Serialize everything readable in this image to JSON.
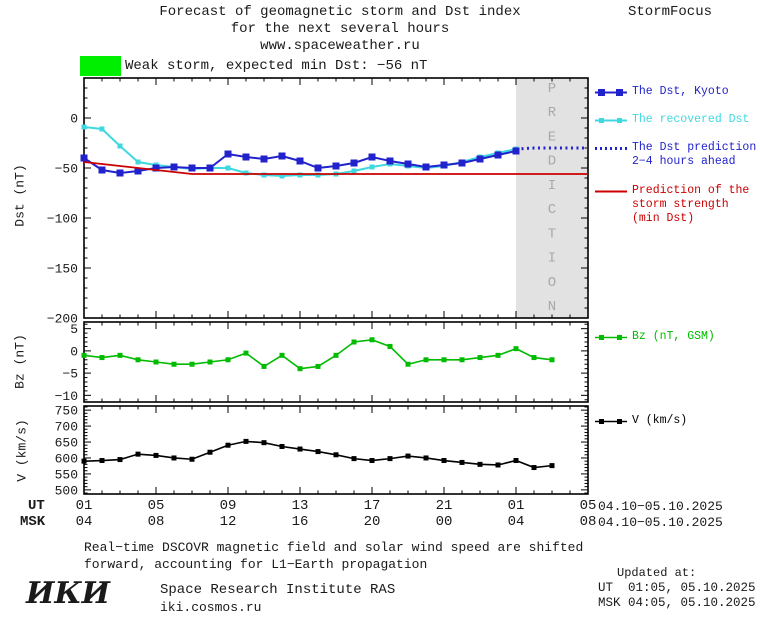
{
  "header": {
    "title_line1": "Forecast of geomagnetic storm and Dst index",
    "title_line2": "for the next several hours",
    "title_line3": "www.spaceweather.ru",
    "brand": "StormFocus"
  },
  "storm_banner": {
    "label": "Weak storm, expected min Dst: −56 nT",
    "color": "#00ee00"
  },
  "legend": {
    "dst_kyoto": {
      "label": "The Dst, Kyoto",
      "color": "#2222cc"
    },
    "recovered": {
      "label": "The recovered Dst",
      "color": "#3fd8e0"
    },
    "prediction": {
      "label_line1": "The Dst prediction",
      "label_line2": "2−4 hours ahead",
      "color": "#2222cc"
    },
    "storm_strength": {
      "label_line1": "Prediction of the",
      "label_line2": "storm strength",
      "label_line3": "(min Dst)",
      "color": "#cc0000"
    },
    "bz": {
      "label": "Bz (nT, GSM)",
      "color": "#00bb00"
    },
    "v": {
      "label": "V (km/s)",
      "color": "#000000"
    }
  },
  "chart_data": [
    {
      "type": "line",
      "title": "Dst index and forecast",
      "ylabel": "Dst (nT)",
      "xlabel": "UT hours, 04.10−05.10.2025",
      "xlim": [
        1,
        29
      ],
      "ylim": [
        -200,
        40
      ],
      "y_minor": 10,
      "yticks": [
        0,
        -50,
        -100,
        -150,
        -200
      ],
      "xticks": [
        1,
        5,
        9,
        13,
        17,
        21,
        25,
        29
      ],
      "prediction_band": {
        "x_start": 25,
        "x_end": 29,
        "label": "PREDICTION"
      },
      "series": [
        {
          "name": "The recovered Dst",
          "color": "#3fd8e0",
          "marker": "square",
          "marker_size": 5,
          "width": 2,
          "x": [
            1,
            2,
            3,
            4,
            5,
            6,
            7,
            8,
            9,
            10,
            11,
            12,
            13,
            14,
            15,
            16,
            17,
            18,
            19,
            20,
            21,
            22,
            23,
            24,
            25
          ],
          "y": [
            -9,
            -11,
            -28,
            -44,
            -47,
            -49,
            -51,
            -50,
            -50,
            -55,
            -57,
            -58,
            -57,
            -57,
            -56,
            -53,
            -49,
            -46,
            -48,
            -50,
            -48,
            -44,
            -39,
            -35,
            -31
          ]
        },
        {
          "name": "The Dst, Kyoto",
          "color": "#2222cc",
          "marker": "square",
          "marker_size": 7,
          "width": 2,
          "x": [
            1,
            2,
            3,
            4,
            5,
            6,
            7,
            8,
            9,
            10,
            11,
            12,
            13,
            14,
            15,
            16,
            17,
            18,
            19,
            20,
            21,
            22,
            23,
            24,
            25
          ],
          "y": [
            -40,
            -52,
            -55,
            -53,
            -50,
            -49,
            -50,
            -50,
            -36,
            -39,
            -41,
            -38,
            -43,
            -50,
            -48,
            -45,
            -39,
            -43,
            -46,
            -49,
            -47,
            -45,
            -41,
            -37,
            -33
          ]
        },
        {
          "name": "The Dst prediction 2−4 hours ahead",
          "color": "#2222cc",
          "style": "dotted",
          "x": [
            25,
            26,
            27,
            28,
            29
          ],
          "y": [
            -31,
            -30,
            -30,
            -30,
            -30
          ]
        },
        {
          "name": "Prediction of the storm strength (min Dst)",
          "color": "#cc0000",
          "width": 1.7,
          "x": [
            1,
            3,
            5,
            7,
            29
          ],
          "y": [
            -44,
            -48,
            -52,
            -56,
            -56
          ]
        }
      ]
    },
    {
      "type": "line",
      "title": "Bz component",
      "ylabel": "Bz (nT)",
      "xlabel": "",
      "xlim": [
        1,
        29
      ],
      "ylim": [
        -11.5,
        6.5
      ],
      "y_minor": 1,
      "yticks": [
        5,
        0,
        -5,
        -10
      ],
      "xticks": [
        1,
        5,
        9,
        13,
        17,
        21,
        25,
        29
      ],
      "series": [
        {
          "name": "Bz (nT, GSM)",
          "color": "#00bb00",
          "marker": "square",
          "marker_size": 5,
          "width": 1.6,
          "x": [
            1,
            2,
            3,
            4,
            5,
            6,
            7,
            8,
            9,
            10,
            11,
            12,
            13,
            14,
            15,
            16,
            17,
            18,
            19,
            20,
            21,
            22,
            23,
            24,
            25,
            26,
            27
          ],
          "y": [
            -1,
            -1.5,
            -1,
            -2,
            -2.5,
            -3,
            -3,
            -2.5,
            -2,
            -0.5,
            -3.5,
            -1,
            -4,
            -3.5,
            -1,
            2,
            2.5,
            1,
            -3,
            -2,
            -2,
            -2,
            -1.5,
            -1,
            0.5,
            -1.5,
            -2
          ]
        }
      ]
    },
    {
      "type": "line",
      "title": "Solar wind speed",
      "ylabel": "V (km/s)",
      "xlabel": "",
      "xlim": [
        1,
        29
      ],
      "ylim": [
        487,
        763
      ],
      "y_minor": 10,
      "yticks": [
        750,
        700,
        650,
        600,
        550,
        500
      ],
      "xticks": [
        1,
        5,
        9,
        13,
        17,
        21,
        25,
        29
      ],
      "series": [
        {
          "name": "V (km/s)",
          "color": "#000000",
          "marker": "square",
          "marker_size": 5,
          "width": 1.6,
          "x": [
            1,
            2,
            3,
            4,
            5,
            6,
            7,
            8,
            9,
            10,
            11,
            12,
            13,
            14,
            15,
            16,
            17,
            18,
            19,
            20,
            21,
            22,
            23,
            24,
            25,
            26,
            27
          ],
          "y": [
            590,
            592,
            595,
            612,
            608,
            600,
            596,
            618,
            640,
            652,
            648,
            636,
            628,
            620,
            610,
            598,
            592,
            598,
            606,
            600,
            592,
            586,
            580,
            578,
            592,
            570,
            576
          ]
        }
      ]
    }
  ],
  "time_axis": {
    "ut_label": "UT",
    "msk_label": "MSK",
    "ut_ticks": [
      "01",
      "05",
      "09",
      "13",
      "17",
      "21",
      "01",
      "05"
    ],
    "msk_ticks": [
      "04",
      "08",
      "12",
      "16",
      "20",
      "00",
      "04",
      "08"
    ],
    "ut_date": "04.10−05.10.2025",
    "msk_date": "04.10−05.10.2025"
  },
  "footnote": {
    "line1": "Real−time DSCOVR magnetic field and solar wind speed are shifted",
    "line2": "forward, accounting for L1−Earth propagation"
  },
  "footer": {
    "logo": "ИКИ",
    "institute": "Space Research Institute RAS",
    "site": "iki.cosmos.ru",
    "updated_label": "Updated at:",
    "updated_ut": "UT  01:05, 05.10.2025",
    "updated_msk": "MSK 04:05, 05.10.2025"
  }
}
